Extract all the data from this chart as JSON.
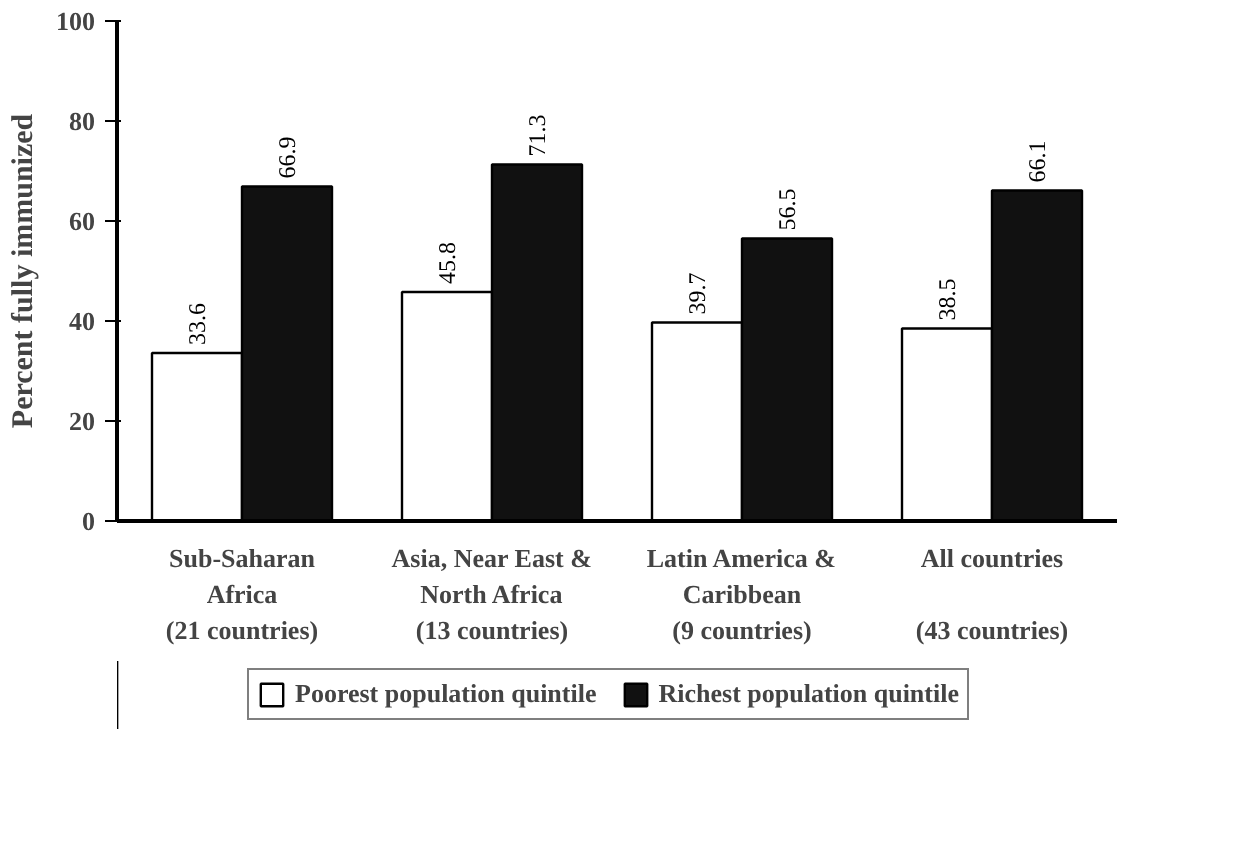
{
  "chart_data": {
    "type": "bar",
    "ylabel": "Percent fully immunized",
    "categories": [
      "Sub-Saharan\nAfrica\n(21 countries)",
      "Asia, Near East &\nNorth Africa\n(13 countries)",
      "Latin America &\nCaribbean\n(9 countries)",
      "All countries\n\n(43 countries)"
    ],
    "series": [
      {
        "name": "Poorest population quintile",
        "color": "#ffffff",
        "values": [
          33.6,
          45.8,
          39.7,
          38.5
        ]
      },
      {
        "name": "Richest population quintile",
        "color": "#111111",
        "values": [
          66.9,
          71.3,
          56.5,
          66.1
        ]
      }
    ],
    "ylim": [
      0,
      100
    ],
    "yticks": [
      0,
      20,
      40,
      60,
      80,
      100
    ],
    "grid": false,
    "legend": "bottom",
    "data_labels": true
  }
}
